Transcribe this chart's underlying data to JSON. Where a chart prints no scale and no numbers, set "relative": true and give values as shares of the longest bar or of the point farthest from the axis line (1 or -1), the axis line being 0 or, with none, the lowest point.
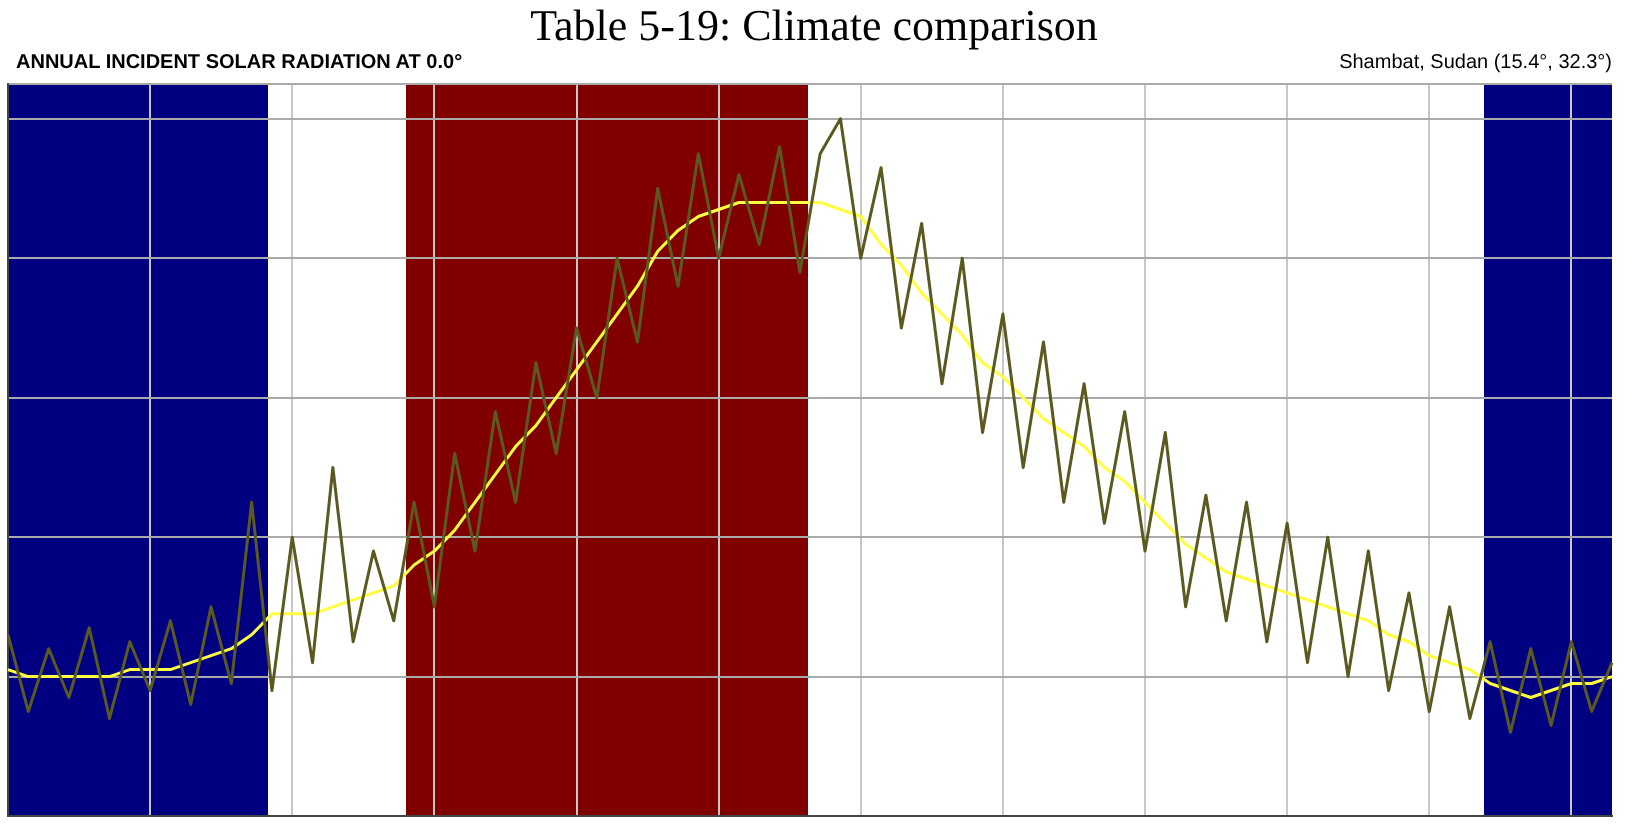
{
  "chart_data": {
    "type": "line",
    "title": "Table 5-19: Climate comparison",
    "subtitle": "ANNUAL INCIDENT SOLAR RADIATION AT 0.0°",
    "annotations": [
      "Shambat, Sudan (15.4°, 32.3°)"
    ],
    "relative": true,
    "grid": true,
    "legend": false,
    "marker": "none",
    "line_style": "solid",
    "categories": [
      null,
      null,
      null,
      null,
      null,
      null,
      null,
      null,
      null,
      null,
      null,
      null,
      null,
      null,
      null,
      null,
      null,
      null,
      null,
      null,
      null,
      null,
      null,
      null,
      null,
      null,
      null,
      null,
      null,
      null,
      null,
      null,
      null,
      null,
      null,
      null,
      null,
      null,
      null,
      null,
      null,
      null,
      null,
      null,
      null,
      null,
      null,
      null,
      null,
      null,
      null,
      null,
      null,
      null,
      null,
      null,
      null,
      null,
      null,
      null,
      null,
      null,
      null,
      null,
      null,
      null,
      null,
      null,
      null,
      null,
      null,
      null,
      null,
      null,
      null,
      null,
      null,
      null,
      null,
      null
    ],
    "series": [
      {
        "color": "#5a5a20",
        "values": [
          0.26,
          0.15,
          0.24,
          0.17,
          0.27,
          0.14,
          0.25,
          0.18,
          0.28,
          0.16,
          0.3,
          0.19,
          0.45,
          0.18,
          0.4,
          0.22,
          0.5,
          0.25,
          0.38,
          0.28,
          0.45,
          0.3,
          0.52,
          0.38,
          0.58,
          0.45,
          0.65,
          0.52,
          0.7,
          0.6,
          0.8,
          0.68,
          0.9,
          0.76,
          0.95,
          0.8,
          0.92,
          0.82,
          0.96,
          0.78,
          0.95,
          1.0,
          0.8,
          0.93,
          0.7,
          0.85,
          0.62,
          0.8,
          0.55,
          0.72,
          0.5,
          0.68,
          0.45,
          0.62,
          0.42,
          0.58,
          0.38,
          0.55,
          0.3,
          0.46,
          0.28,
          0.45,
          0.25,
          0.42,
          0.22,
          0.4,
          0.2,
          0.38,
          0.18,
          0.32,
          0.15,
          0.3,
          0.14,
          0.25,
          0.12,
          0.24,
          0.13,
          0.25,
          0.15,
          0.22
        ]
      },
      {
        "color": "#ffff40",
        "values": [
          0.21,
          0.2,
          0.2,
          0.2,
          0.2,
          0.2,
          0.21,
          0.21,
          0.21,
          0.22,
          0.23,
          0.24,
          0.26,
          0.29,
          0.29,
          0.29,
          0.3,
          0.31,
          0.32,
          0.33,
          0.36,
          0.38,
          0.41,
          0.45,
          0.49,
          0.53,
          0.56,
          0.6,
          0.64,
          0.68,
          0.72,
          0.76,
          0.81,
          0.84,
          0.86,
          0.87,
          0.88,
          0.88,
          0.88,
          0.88,
          0.88,
          0.87,
          0.86,
          0.82,
          0.79,
          0.75,
          0.72,
          0.69,
          0.65,
          0.63,
          0.6,
          0.57,
          0.55,
          0.53,
          0.5,
          0.48,
          0.45,
          0.42,
          0.39,
          0.37,
          0.35,
          0.34,
          0.33,
          0.32,
          0.31,
          0.3,
          0.29,
          0.28,
          0.26,
          0.25,
          0.23,
          0.22,
          0.21,
          0.19,
          0.18,
          0.17,
          0.18,
          0.19,
          0.19,
          0.2
        ]
      }
    ]
  }
}
